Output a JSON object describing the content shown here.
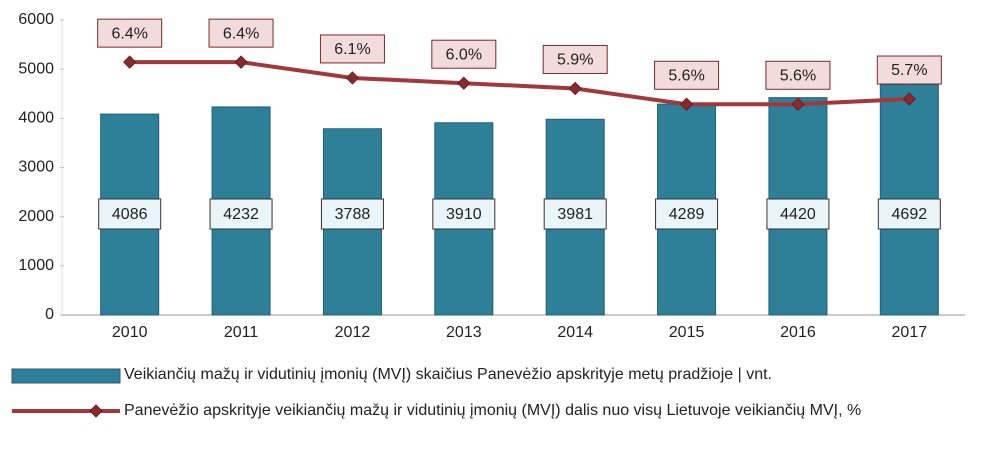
{
  "chart_data": {
    "type": "bar_line",
    "categories": [
      "2010",
      "2011",
      "2012",
      "2013",
      "2014",
      "2015",
      "2016",
      "2017"
    ],
    "series": [
      {
        "name": "Veikiančių mažų ir vidutinių įmonių (MVĮ) skaičius Panevėžio apskrityje metų pradžioje | vnt.",
        "type": "bar",
        "color": "#2e7f98",
        "values": [
          4086,
          4232,
          3788,
          3910,
          3981,
          4289,
          4420,
          4692
        ]
      },
      {
        "name": "Panevėžio apskrityje veikiančių mažų ir vidutinių įmonių (MVĮ) dalis nuo visų Lietuvoje veikiančių MVĮ, %",
        "type": "line",
        "color": "#a3383a",
        "axis": "y2",
        "values": [
          6.4,
          6.4,
          6.1,
          6.0,
          5.9,
          5.6,
          5.6,
          5.7
        ],
        "value_labels": [
          "6.4%",
          "6.4%",
          "6.1%",
          "6.0%",
          "5.9%",
          "5.6%",
          "5.6%",
          "5.7%"
        ]
      }
    ],
    "ylim": [
      0,
      6000
    ],
    "yticks": [
      0,
      1000,
      2000,
      3000,
      4000,
      5000,
      6000
    ],
    "y2lim": [
      1.6,
      7.2
    ],
    "grid": false,
    "legend": "bottom"
  }
}
